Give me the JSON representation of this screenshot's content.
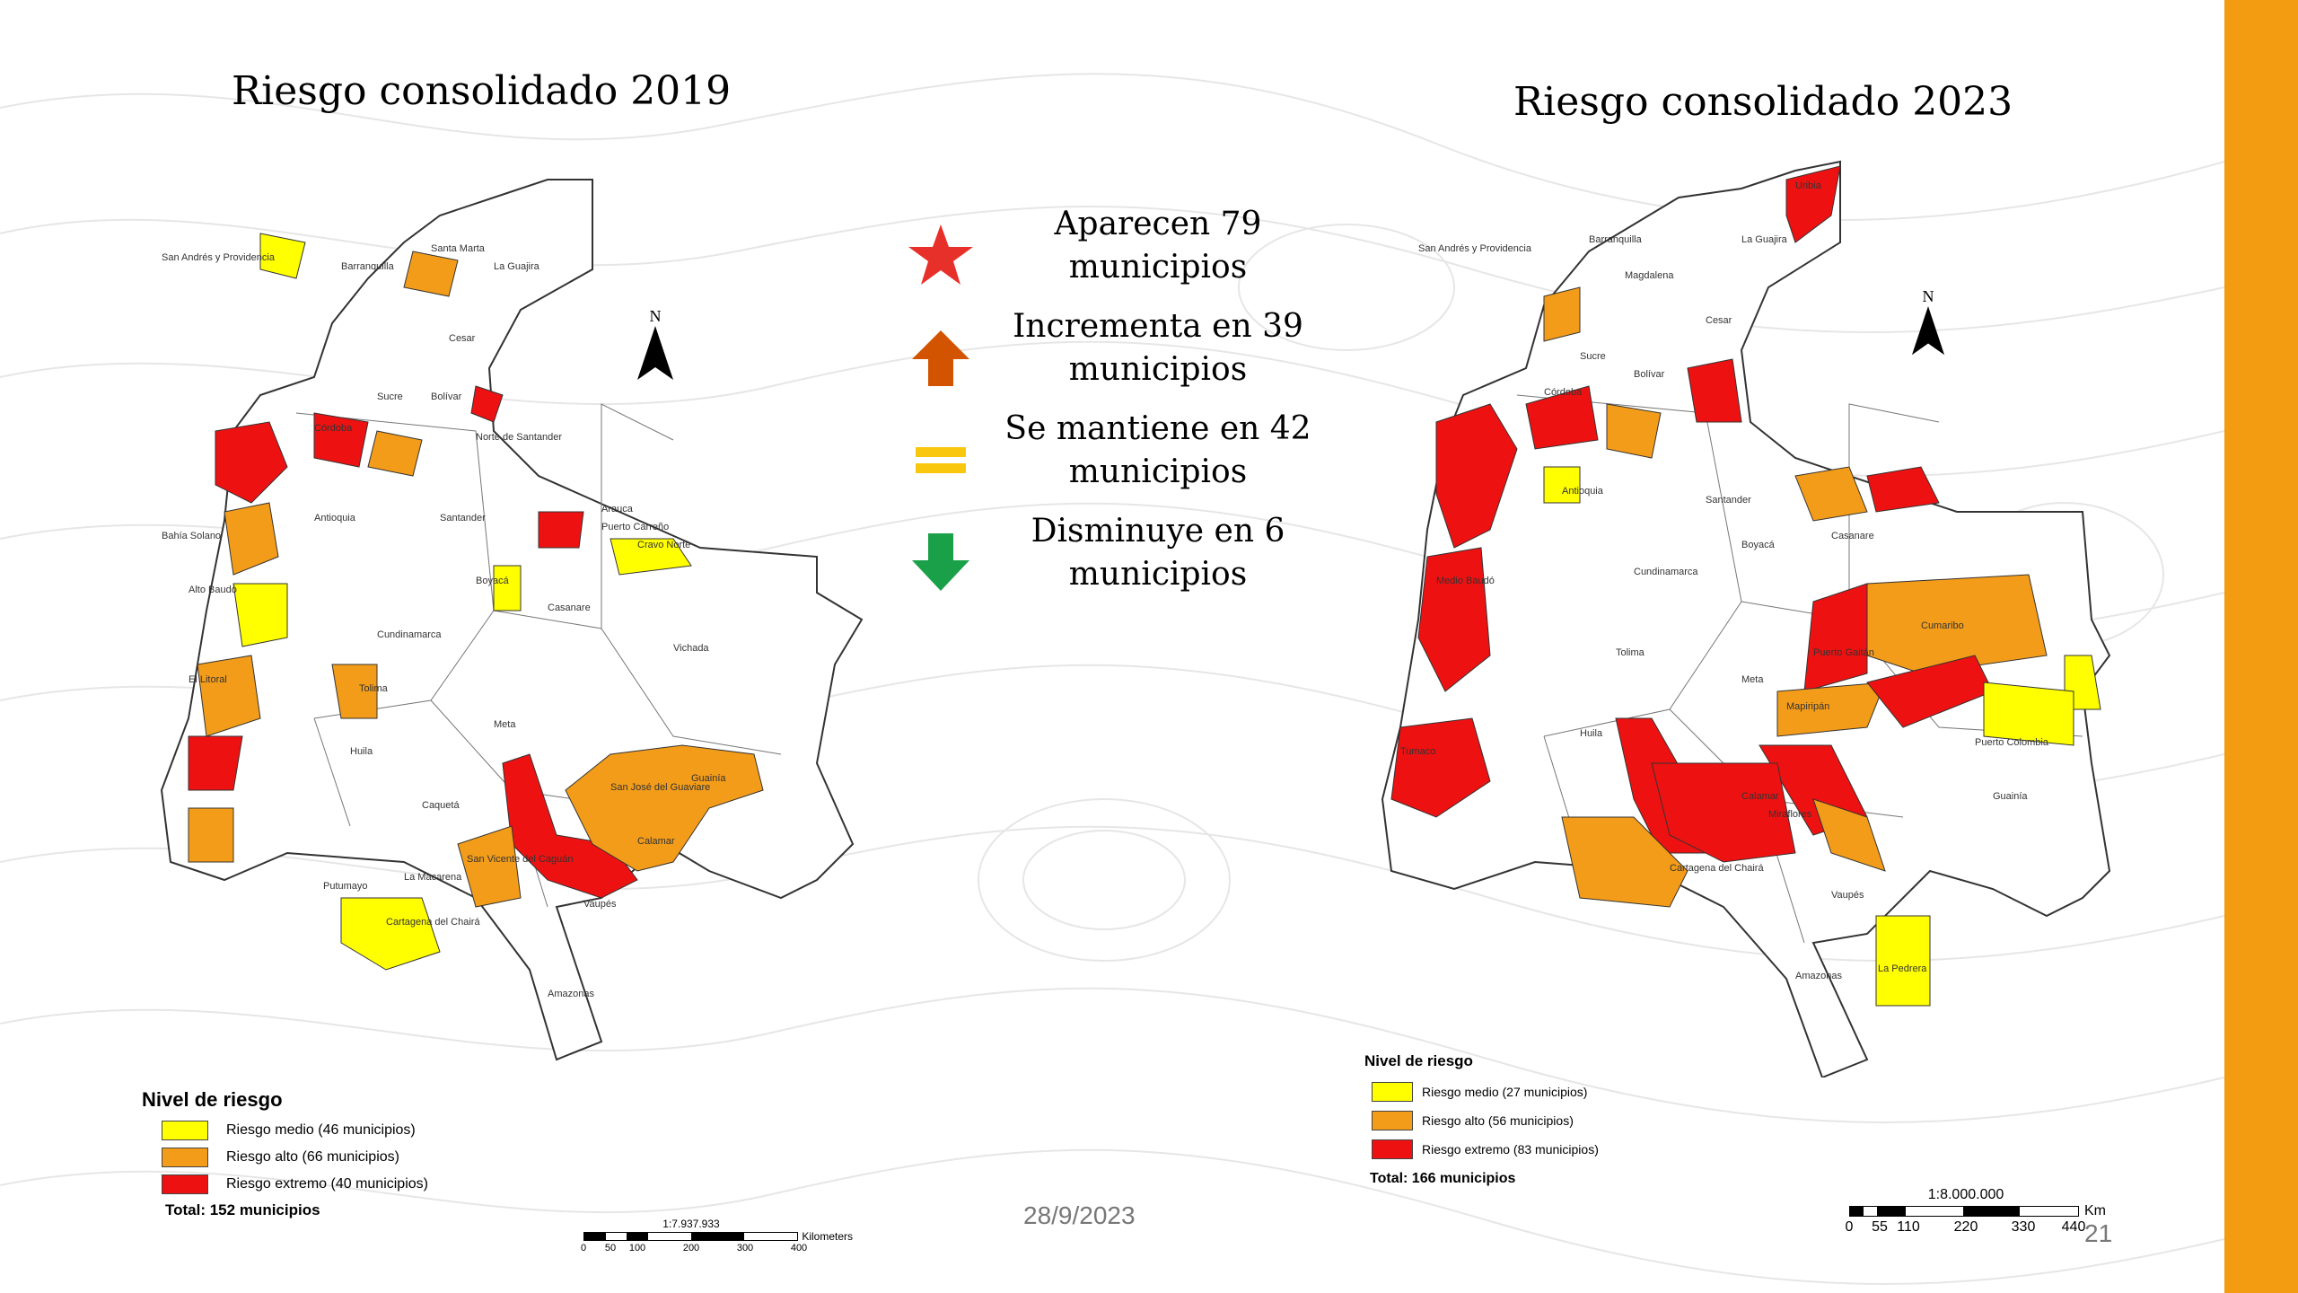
{
  "colors": {
    "accent_bar": "#F39C12",
    "risk_medio": "#FFFF00",
    "risk_alto": "#F39C1A",
    "risk_extremo": "#EE1111",
    "star": "#E8302A",
    "arrow_up": "#D35400",
    "equal": "#F9C80E",
    "arrow_down": "#1BA04A"
  },
  "map_2019": {
    "title": "Riesgo consolidado 2019",
    "north_label": "N",
    "legend": {
      "title": "Nivel de riesgo",
      "items": [
        {
          "label": "Riesgo medio (46 municipios)",
          "level": "medio"
        },
        {
          "label": "Riesgo alto (66 municipios)",
          "level": "alto"
        },
        {
          "label": "Riesgo extremo (40 municipios)",
          "level": "extremo"
        }
      ],
      "total": "Total: 152 municipios"
    },
    "scale": {
      "ratio": "1:7.937.933",
      "unit": "Kilometers",
      "ticks": [
        "0",
        "50",
        "100",
        "200",
        "300",
        "400"
      ]
    },
    "places": [
      "San Andrés y Providencia",
      "Barranquilla",
      "Santa Marta",
      "La Guajira",
      "Cesar",
      "Sucre",
      "Bolívar",
      "Córdoba",
      "Antioquia",
      "Norte de Santander",
      "Arauca",
      "Santander",
      "Boyacá",
      "Casanare",
      "Vichada",
      "Cundinamarca",
      "Tolima",
      "Meta",
      "Huila",
      "Guainía",
      "Caquetá",
      "Vaupés",
      "Putumayo",
      "Amazonas",
      "San José del Guaviare",
      "Calamar",
      "San Vicente del Caguán",
      "Cartagena del Chairá",
      "La Macarena",
      "Puerto Carreño",
      "Alto Baudó",
      "El Litoral",
      "Bahía Solano",
      "Cravo Norte"
    ]
  },
  "map_2023": {
    "title": "Riesgo consolidado 2023",
    "north_label": "N",
    "legend": {
      "title": "Nivel de riesgo",
      "items": [
        {
          "label": "Riesgo medio (27 municipios)",
          "level": "medio"
        },
        {
          "label": "Riesgo alto (56 municipios)",
          "level": "alto"
        },
        {
          "label": "Riesgo extremo (83 municipios)",
          "level": "extremo"
        }
      ],
      "total": "Total: 166 municipios"
    },
    "scale": {
      "ratio": "1:8.000.000",
      "unit": "Km",
      "ticks": [
        "0",
        "55",
        "110",
        "220",
        "330",
        "440"
      ]
    },
    "places": [
      "San Andrés y Providencia",
      "Uribia",
      "Barranquilla",
      "La Guajira",
      "Cesar",
      "Magdalena",
      "Sucre",
      "Bolívar",
      "Córdoba",
      "Antioquia",
      "Santander",
      "Boyacá",
      "Casanare",
      "Cundinamarca",
      "Tolima",
      "Meta",
      "Huila",
      "Cumaribo",
      "Mapiripán",
      "Puerto Gaitán",
      "Miraflores",
      "Vaupés",
      "Amazonas",
      "La Pedrera",
      "Puerto Colombia",
      "Guainía",
      "Cartagena del Chairá",
      "Calamar",
      "Tumaco",
      "Medio Baudó"
    ]
  },
  "changes": [
    {
      "icon": "star-icon",
      "text": "Aparecen 79\nmunicipios"
    },
    {
      "icon": "arrow-up-icon",
      "text": "Incrementa en 39\nmunicipios"
    },
    {
      "icon": "equal-icon",
      "text": "Se mantiene en 42\nmunicipios"
    },
    {
      "icon": "arrow-down-icon",
      "text": "Disminuye en 6\nmunicipios"
    }
  ],
  "footer": {
    "date": "28/9/2023",
    "slide_number": "21"
  }
}
